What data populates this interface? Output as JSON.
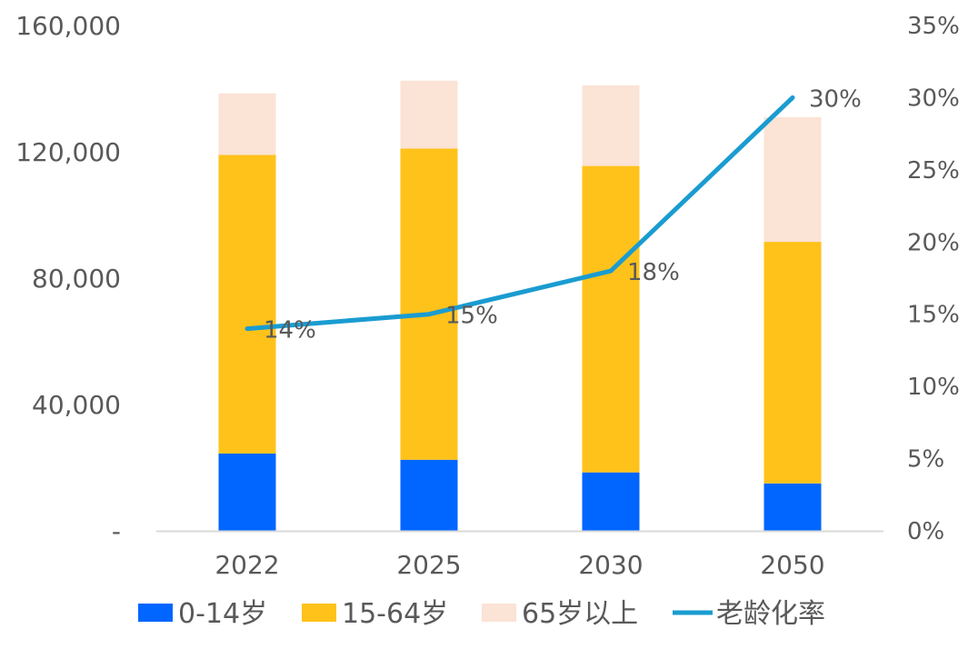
{
  "chart_data": {
    "type": "bar",
    "subtype": "stacked-bar-with-line",
    "categories": [
      "2022",
      "2025",
      "2030",
      "2050"
    ],
    "series": [
      {
        "name": "0-14岁",
        "kind": "bar",
        "axis": "left",
        "color": "#0066FF",
        "values": [
          24500,
          22500,
          18500,
          15000
        ]
      },
      {
        "name": "15-64岁",
        "kind": "bar",
        "axis": "left",
        "color": "#FFC21A",
        "values": [
          94500,
          98500,
          97000,
          76500
        ]
      },
      {
        "name": "65岁以上",
        "kind": "bar",
        "axis": "left",
        "color": "#FBE3D6",
        "values": [
          19500,
          21500,
          25500,
          39500
        ]
      },
      {
        "name": "老龄化率",
        "kind": "line",
        "axis": "right",
        "color": "#1A9CD1",
        "values": [
          14,
          15,
          18,
          30
        ],
        "labels": [
          "14%",
          "15%",
          "18%",
          "30%"
        ]
      }
    ],
    "y_left": {
      "ylim": [
        0,
        160000
      ],
      "ticks": [
        0,
        40000,
        80000,
        120000,
        160000
      ],
      "tick_labels": [
        "-",
        "40,000",
        "80,000",
        "120,000",
        "160,000"
      ]
    },
    "y_right": {
      "ylim": [
        0,
        35
      ],
      "ticks": [
        0,
        5,
        10,
        15,
        20,
        25,
        30,
        35
      ],
      "tick_labels": [
        "0%",
        "5%",
        "10%",
        "15%",
        "20%",
        "25%",
        "30%",
        "35%"
      ]
    },
    "title": "",
    "xlabel": "",
    "ylabel": "",
    "grid": false,
    "legend_position": "bottom"
  }
}
